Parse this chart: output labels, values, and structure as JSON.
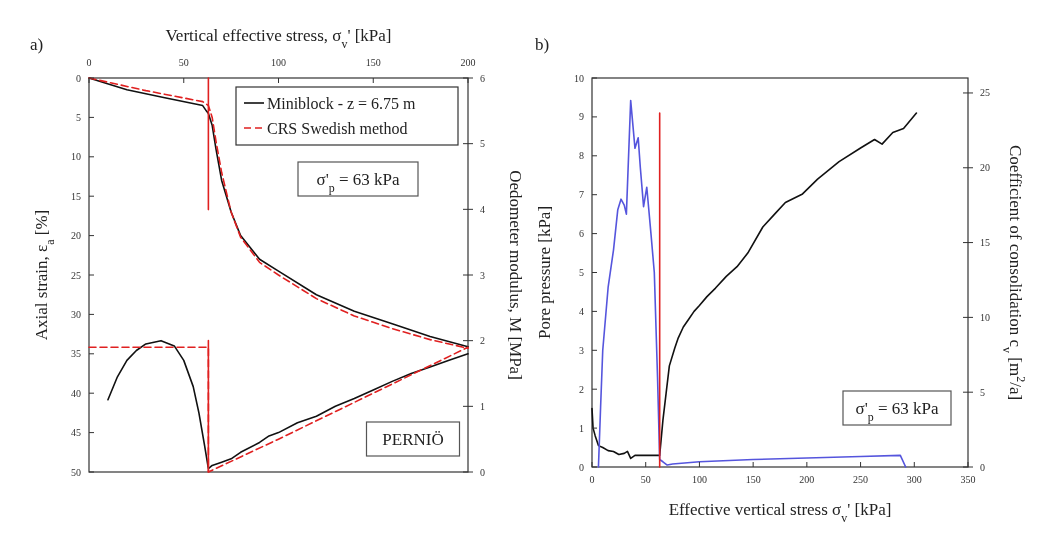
{
  "chart_data": [
    {
      "type": "line",
      "xlabel": "Vertical effective stress, σ$_{v}$'  [kPa]",
      "ylabel": "Axial strain, ε$_{a}$ [%]",
      "y2label": "Oedometer modulus, M [MPa]",
      "xlim": [
        0,
        200
      ],
      "xticks": [
        0,
        50,
        100,
        150,
        200
      ],
      "ylim": [
        50,
        0
      ],
      "yticks": [
        0,
        5,
        10,
        15,
        20,
        25,
        30,
        35,
        40,
        45,
        50
      ],
      "y2lim": [
        0,
        6
      ],
      "y2ticks": [
        0,
        1,
        2,
        3,
        4,
        5,
        6
      ],
      "legend": "top right",
      "grid": false,
      "annotations": [
        "a)",
        "σ'$_{p}$ = 63 kPa",
        "PERNIÖ"
      ],
      "series": [
        {
          "name": "Miniblock - z = 6.75 m",
          "color": "#111111",
          "line_style": "solid",
          "x": [
            0,
            20,
            40,
            60,
            62,
            63,
            65,
            67,
            70,
            75,
            80,
            90,
            100,
            120,
            140,
            160,
            180,
            200
          ],
          "values": [
            0,
            1.5,
            2.5,
            3.5,
            4.2,
            4.5,
            6,
            9,
            13,
            17,
            20,
            23,
            24.5,
            27.5,
            29.6,
            31.2,
            32.8,
            34.1
          ]
        },
        {
          "name": "CRS Swedish method",
          "color": "#e02020",
          "line_style": "dashed",
          "x": [
            0,
            30,
            60,
            63,
            65,
            67,
            70,
            75,
            80,
            90,
            100,
            120,
            140,
            160,
            180,
            200
          ],
          "values": [
            0,
            1.6,
            3,
            3.5,
            5,
            8,
            12,
            17,
            20.2,
            23.4,
            25,
            28,
            30.2,
            31.8,
            33.2,
            34.3
          ]
        },
        {
          "color": "#111111",
          "line_style": "solid",
          "axis": "y2",
          "x": [
            10,
            15,
            20,
            25,
            30,
            38,
            45,
            50,
            55,
            58,
            61,
            63,
            65,
            70,
            75,
            80,
            90,
            95,
            100,
            110,
            120,
            130,
            140,
            150,
            160,
            170,
            180,
            190,
            200
          ],
          "values": [
            1.1,
            1.45,
            1.7,
            1.85,
            1.95,
            2.0,
            1.92,
            1.7,
            1.3,
            0.9,
            0.4,
            0.05,
            0.1,
            0.15,
            0.2,
            0.3,
            0.45,
            0.55,
            0.6,
            0.75,
            0.85,
            1.0,
            1.12,
            1.25,
            1.38,
            1.5,
            1.6,
            1.7,
            1.8
          ]
        },
        {
          "color": "#e02020",
          "line_style": "dashed",
          "axis": "y2",
          "x": [
            0,
            63,
            63,
            100,
            150,
            200
          ],
          "values": [
            1.9,
            1.9,
            0,
            0.5,
            1.2,
            1.9
          ]
        },
        {
          "color": "#e02020",
          "line_style": "solid",
          "x": [
            63,
            63
          ],
          "values": [
            0,
            16.7
          ]
        },
        {
          "color": "#e02020",
          "line_style": "solid",
          "axis": "y2",
          "x": [
            63,
            63
          ],
          "values": [
            2.0,
            0
          ]
        }
      ]
    },
    {
      "type": "line",
      "xlabel": "Effective vertical stress σ$_{v}$'  [kPa]",
      "ylabel": "Pore pressure [kPa]",
      "y2label": "Coefficient of consolidation c$_{v}$ [m$^{2}$/a]",
      "xlim": [
        0,
        350
      ],
      "xticks": [
        0,
        50,
        100,
        150,
        200,
        250,
        300,
        350
      ],
      "ylim": [
        0,
        10
      ],
      "yticks": [
        0,
        1,
        2,
        3,
        4,
        5,
        6,
        7,
        8,
        9,
        10
      ],
      "y2lim": [
        0,
        26
      ],
      "y2ticks": [
        0,
        5,
        10,
        15,
        20,
        25
      ],
      "grid": false,
      "annotations": [
        "b)",
        "σ'$_{p}$ = 63 kPa"
      ],
      "series": [
        {
          "color": "#111111",
          "line_style": "solid",
          "x": [
            0,
            1,
            3,
            6,
            10,
            15,
            20,
            25,
            30,
            33,
            36,
            40,
            63,
            66,
            69,
            72,
            77,
            80,
            85,
            90,
            95,
            100,
            107,
            115,
            125,
            135,
            145,
            159,
            170,
            180,
            196,
            210,
            230,
            250,
            263,
            270,
            280,
            290,
            302
          ],
          "values": [
            1.5,
            1.0,
            0.8,
            0.55,
            0.5,
            0.42,
            0.4,
            0.32,
            0.35,
            0.4,
            0.22,
            0.3,
            0.3,
            1.2,
            1.9,
            2.6,
            3.05,
            3.3,
            3.6,
            3.8,
            4.0,
            4.15,
            4.38,
            4.6,
            4.9,
            5.15,
            5.5,
            6.17,
            6.5,
            6.8,
            7.02,
            7.4,
            7.85,
            8.2,
            8.42,
            8.3,
            8.6,
            8.7,
            9.1
          ]
        },
        {
          "color": "#5555dd",
          "line_style": "solid",
          "axis": "y2",
          "x": [
            6,
            8,
            10,
            15,
            20,
            24,
            27,
            30,
            32,
            36,
            40,
            43,
            45,
            48,
            51,
            55,
            58,
            61,
            63,
            66,
            70,
            75,
            100,
            150,
            200,
            250,
            287,
            292
          ],
          "values": [
            0,
            4,
            7.8,
            12,
            14.5,
            17.2,
            17.9,
            17.5,
            16.9,
            24.5,
            21.3,
            22,
            20,
            17.4,
            18.7,
            15.5,
            13,
            6,
            0.5,
            0.35,
            0.13,
            0.2,
            0.35,
            0.5,
            0.6,
            0.7,
            0.78,
            0
          ]
        },
        {
          "color": "#e02020",
          "line_style": "solid",
          "x": [
            63,
            63
          ],
          "values": [
            0,
            9.1
          ]
        }
      ]
    }
  ]
}
